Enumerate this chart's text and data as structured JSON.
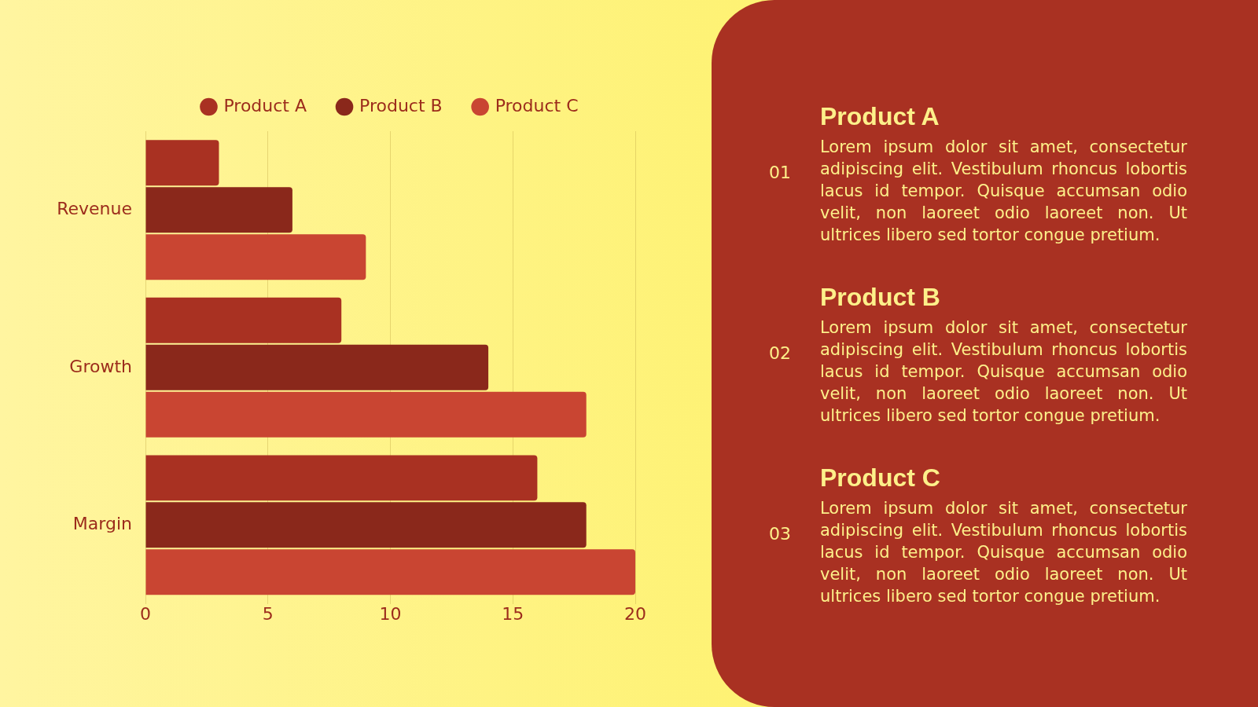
{
  "chart_data": [
    {
      "type": "bar",
      "orientation": "horizontal",
      "categories": [
        "Revenue",
        "Growth",
        "Margin"
      ],
      "series": [
        {
          "name": "Product A",
          "color": "#a93122",
          "values": [
            3,
            8,
            16
          ]
        },
        {
          "name": "Product B",
          "color": "#8a281b",
          "values": [
            6,
            14,
            18
          ]
        },
        {
          "name": "Product C",
          "color": "#c94532",
          "values": [
            9,
            18,
            20
          ]
        }
      ],
      "xlim": [
        0,
        20
      ],
      "xticks": [
        0,
        5,
        10,
        15,
        20
      ],
      "grid": "x",
      "legend": "top"
    },
    {
      "type": "other",
      "annotations": [
        "01",
        "Product A",
        "Lorem ipsum dolor sit amet, consectetur adipiscing elit. Vestibulum rhoncus lobortis lacus id tempor. Quisque accumsan odio velit, non laoreet odio laoreet non. Ut ultrices libero sed tortor congue pretium.",
        "02",
        "Product B",
        "Lorem ipsum dolor sit amet, consectetur adipiscing elit. Vestibulum rhoncus lobortis lacus id tempor. Quisque accumsan odio velit, non laoreet odio laoreet non. Ut ultrices libero sed tortor congue pretium.",
        "03",
        "Product C",
        "Lorem ipsum dolor sit amet, consectetur adipiscing elit. Vestibulum rhoncus lobortis lacus id tempor. Quisque accumsan odio velit, non laoreet odio laoreet non. Ut ultrices libero sed tortor congue pretium."
      ]
    }
  ]
}
